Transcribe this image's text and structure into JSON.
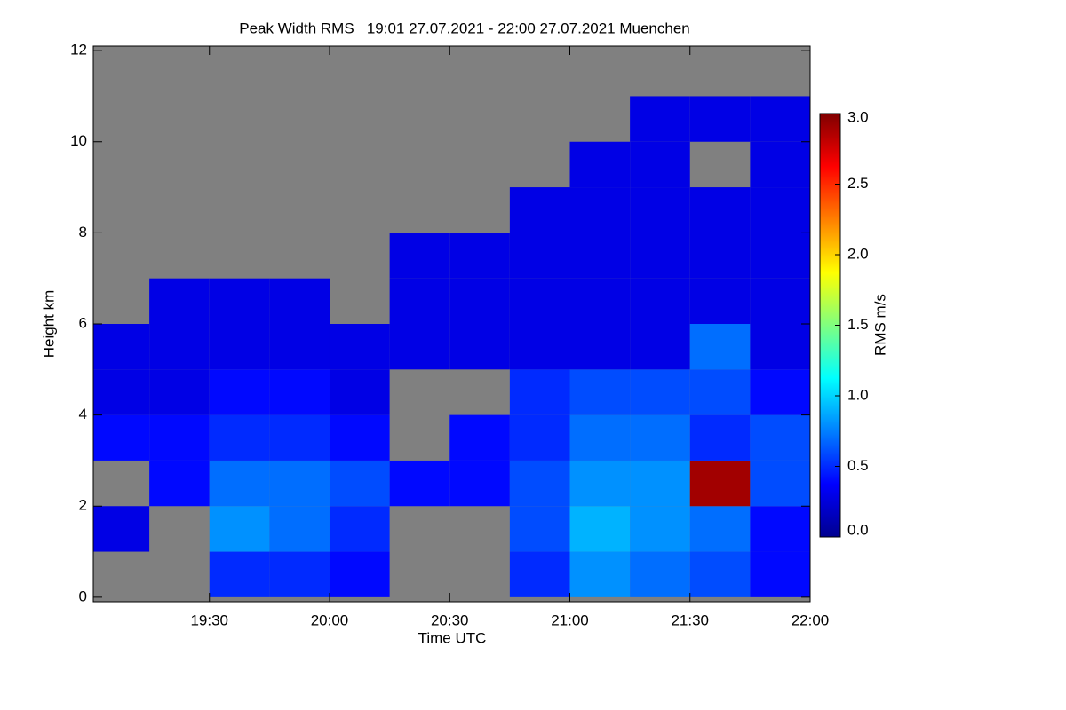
{
  "chart_data": {
    "type": "heatmap",
    "title": "Peak Width RMS   19:01 27.07.2021 - 22:00 27.07.2021 Muenchen",
    "x_label": "Time UTC",
    "y_label": "Height km",
    "colorbar_label": "RMS m/s",
    "colormap": "jet",
    "missing_color": "#808080",
    "x_edges": [
      "19:01",
      "19:15",
      "19:30",
      "19:45",
      "20:00",
      "20:15",
      "20:30",
      "20:45",
      "21:00",
      "21:15",
      "21:30",
      "21:45",
      "22:00"
    ],
    "y_edges": [
      0,
      1,
      2,
      3,
      4,
      5,
      6,
      7,
      8,
      9,
      10,
      11,
      12
    ],
    "values": [
      [
        null,
        null,
        0.5,
        0.5,
        0.4,
        null,
        null,
        0.5,
        0.8,
        0.7,
        0.6,
        0.4
      ],
      [
        0.3,
        null,
        0.8,
        0.7,
        0.5,
        null,
        null,
        0.6,
        0.9,
        0.8,
        0.7,
        0.4
      ],
      [
        null,
        0.4,
        0.7,
        0.7,
        0.6,
        0.4,
        0.4,
        0.6,
        0.8,
        0.8,
        2.9,
        0.6
      ],
      [
        0.4,
        0.4,
        0.5,
        0.5,
        0.4,
        null,
        0.4,
        0.5,
        0.7,
        0.7,
        0.5,
        0.6
      ],
      [
        0.3,
        0.3,
        0.4,
        0.4,
        0.3,
        null,
        null,
        0.5,
        0.6,
        0.6,
        0.6,
        0.4
      ],
      [
        0.3,
        0.3,
        0.3,
        0.3,
        0.3,
        0.3,
        0.3,
        0.3,
        0.3,
        0.3,
        0.7,
        0.3
      ],
      [
        null,
        0.3,
        0.3,
        0.3,
        null,
        0.3,
        0.3,
        0.3,
        0.3,
        0.3,
        0.3,
        0.3
      ],
      [
        null,
        null,
        null,
        null,
        null,
        0.3,
        0.3,
        0.3,
        0.3,
        0.3,
        0.3,
        0.3
      ],
      [
        null,
        null,
        null,
        null,
        null,
        null,
        null,
        0.3,
        0.3,
        0.3,
        0.3,
        0.3
      ],
      [
        null,
        null,
        null,
        null,
        null,
        null,
        null,
        null,
        0.3,
        0.3,
        null,
        0.3
      ],
      [
        null,
        null,
        null,
        null,
        null,
        null,
        null,
        null,
        null,
        0.3,
        0.3,
        0.3
      ],
      [
        null,
        null,
        null,
        null,
        null,
        null,
        null,
        null,
        null,
        null,
        null,
        null
      ]
    ],
    "xlim": [
      "19:01",
      "22:00"
    ],
    "xticks": [
      "19:30",
      "20:00",
      "20:30",
      "21:00",
      "21:30",
      "22:00"
    ],
    "ylim": [
      -0.1,
      12.1
    ],
    "yticks": [
      0,
      2,
      4,
      6,
      8,
      10,
      12
    ],
    "clim": [
      0,
      3
    ],
    "cticks": [
      {
        "value": 0,
        "label": "0.0"
      },
      {
        "value": 0.5,
        "label": "0.5"
      },
      {
        "value": 1,
        "label": "1.0"
      },
      {
        "value": 1.5,
        "label": "1.5"
      },
      {
        "value": 2,
        "label": "2.0"
      },
      {
        "value": 2.5,
        "label": "2.5"
      },
      {
        "value": 3,
        "label": "3.0"
      }
    ]
  }
}
